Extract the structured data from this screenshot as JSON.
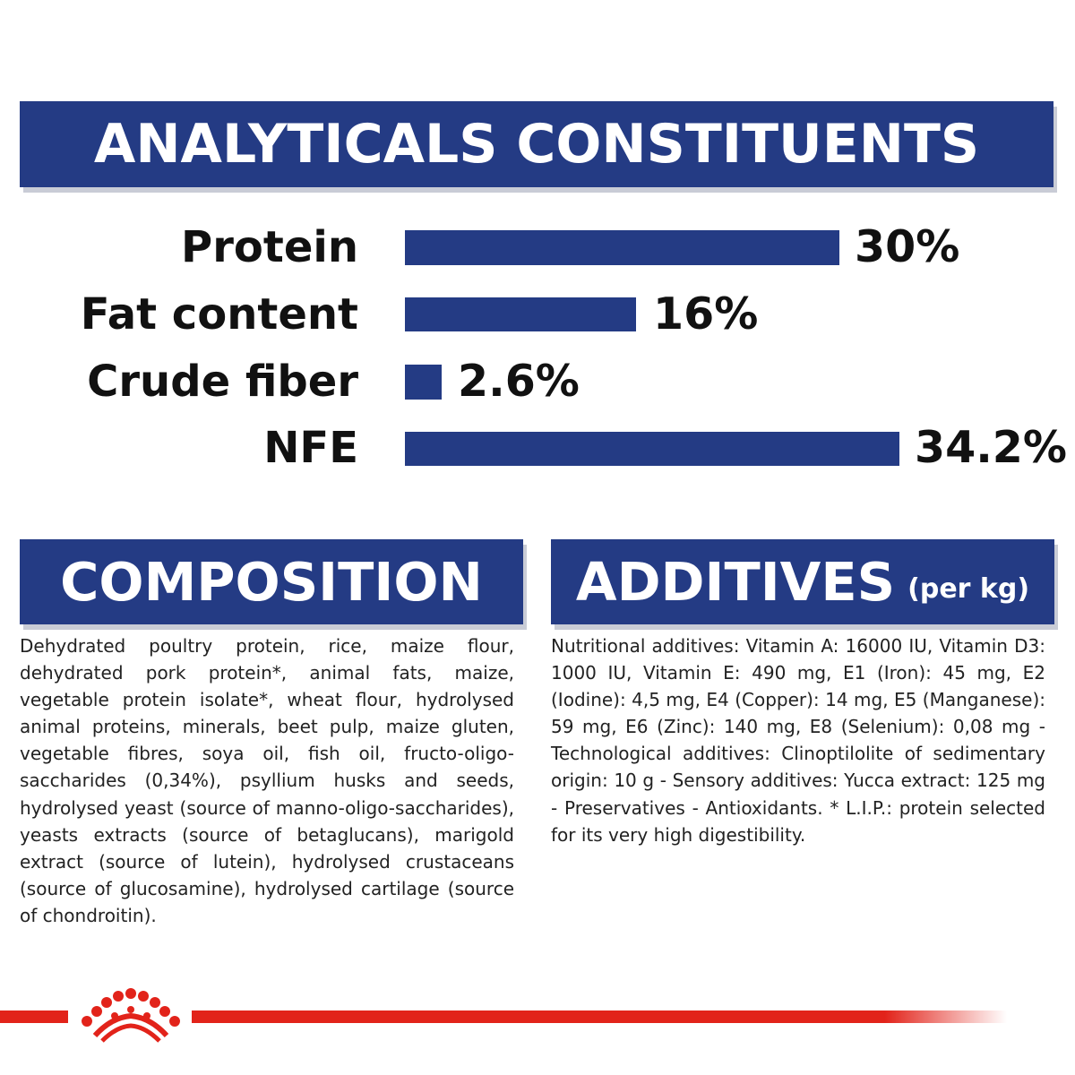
{
  "header": {
    "title": "ANALYTICALS CONSTITUENTS"
  },
  "analytical": {
    "rows": [
      {
        "label": "Protein",
        "value_text": "30%",
        "value": 30
      },
      {
        "label": "Fat content",
        "value_text": "16%",
        "value": 16
      },
      {
        "label": "Crude fiber",
        "value_text": "2.6%",
        "value": 2.6
      },
      {
        "label": "NFE",
        "value_text": "34.2%",
        "value": 34.2
      }
    ],
    "bar_color": "#243b84"
  },
  "composition": {
    "title": "COMPOSITION",
    "text": "Dehydrated poultry protein, rice, maize flour, dehydrated pork protein*, animal fats, maize, vegetable protein isolate*, wheat flour, hydrolysed animal proteins, minerals, beet pulp, maize gluten, vegetable fibres, soya oil, fish oil, fructo-oligo-saccharides (0,34%), psyllium husks and seeds, hydrolysed yeast (source of manno-oligo-saccharides), yeasts extracts (source of betaglucans), marigold extract (source of lutein), hydrolysed crustaceans (source of glucosamine), hydrolysed cartilage (source of chondroitin)."
  },
  "additives": {
    "title": "ADDITIVES",
    "subtitle": "(per kg)",
    "text": "Nutritional additives: Vitamin A: 16000 IU, Vitamin D3: 1000 IU, Vitamin E: 490 mg, E1 (Iron): 45 mg, E2 (Iodine): 4,5 mg, E4 (Copper): 14 mg, E5 (Manganese): 59 mg, E6 (Zinc): 140 mg, E8 (Selenium): 0,08 mg - Technological additives: Clinoptilolite of sedimentary origin: 10 g - Sensory additives: Yucca extract: 125 mg - Preservatives - Antioxidants. * L.I.P.: protein selected for its very high digestibility."
  },
  "footer": {
    "logo": "crown-icon"
  },
  "colors": {
    "brand_blue": "#243b84",
    "brand_red": "#e2231a"
  }
}
